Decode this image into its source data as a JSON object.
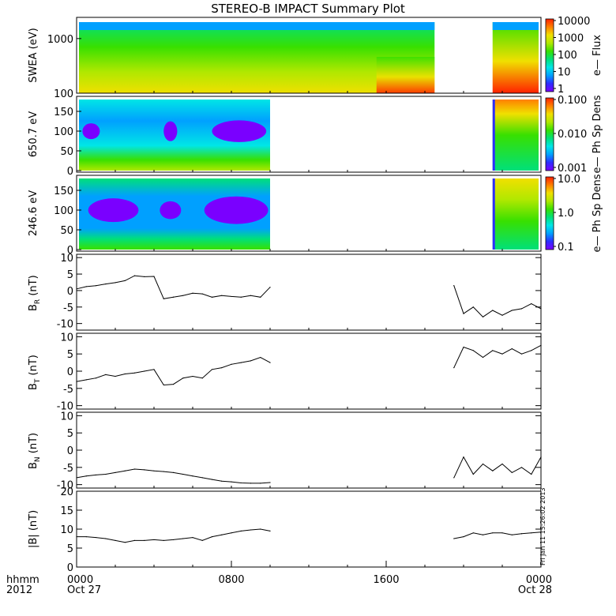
{
  "title": "STEREO-B IMPACT Summary Plot",
  "stamp": "Fri Jan 11 15:26:02 2013",
  "x_axis": {
    "ticks": [
      "0000",
      "0800",
      "1600",
      "0000"
    ],
    "dates": [
      "Oct 27",
      "",
      "",
      "Oct 28"
    ],
    "corner_label_1": "hhmm",
    "corner_label_2": "2012"
  },
  "colors": {
    "line": "#000000",
    "spectrum": [
      "#7a00ff",
      "#2d2dff",
      "#00a0ff",
      "#00e6e6",
      "#00e07a",
      "#38e000",
      "#b0e800",
      "#f0e000",
      "#ff8000",
      "#ff2000"
    ]
  },
  "chart_data": [
    {
      "type": "heatmap",
      "ylabel": "SWEA (eV)",
      "yscale": "log",
      "ylim": [
        100,
        2000
      ],
      "yticks": [
        "1000",
        "100"
      ],
      "colorbar": {
        "label": "e— Flux",
        "scale": "log",
        "range": [
          1,
          20000
        ],
        "ticks": [
          "10000",
          "1000",
          "100",
          "10",
          "1"
        ]
      },
      "data_gaps_hours": [
        [
          18.5,
          21.5
        ]
      ]
    },
    {
      "type": "heatmap",
      "ylabel": "650.7 eV",
      "ylim": [
        0,
        180
      ],
      "yticks": [
        "150",
        "100",
        "50",
        "0"
      ],
      "colorbar": {
        "label": "e— Ph Sp Dens",
        "scale": "log",
        "range": [
          0.001,
          0.1
        ],
        "ticks": [
          "0.100",
          "0.010",
          "0.001"
        ]
      },
      "data_gaps_hours": [
        [
          10,
          21.5
        ]
      ]
    },
    {
      "type": "heatmap",
      "ylabel": "246.6 eV",
      "ylim": [
        0,
        180
      ],
      "yticks": [
        "150",
        "100",
        "50",
        "0"
      ],
      "colorbar": {
        "label": "e— Ph Sp Dens",
        "scale": "log",
        "range": [
          0.1,
          10
        ],
        "ticks": [
          "10.0",
          "1.0",
          "0.1"
        ]
      },
      "data_gaps_hours": [
        [
          10,
          21.5
        ]
      ]
    },
    {
      "type": "line",
      "ylabel": "B",
      "ysub": "R",
      "yunit": " (nT)",
      "ylim": [
        -12,
        11
      ],
      "yticks": [
        10,
        5,
        0,
        -5,
        -10
      ],
      "x": [
        0,
        0.5,
        1,
        1.5,
        2,
        2.5,
        3,
        3.5,
        4,
        4.5,
        5,
        5.5,
        6,
        6.5,
        7,
        7.5,
        8,
        8.5,
        9,
        9.5,
        10,
        19.5,
        20,
        20.5,
        21,
        21.5,
        22,
        22.5,
        23,
        23.5,
        24
      ],
      "y": [
        0.5,
        1.2,
        1.5,
        2,
        2.4,
        3,
        4.5,
        4.2,
        4.3,
        -2.5,
        -2,
        -1.5,
        -0.8,
        -1,
        -2,
        -1.5,
        -1.8,
        -2,
        -1.5,
        -2,
        1,
        1.5,
        -7,
        -5,
        -8,
        -6,
        -7.5,
        -6,
        -5.5,
        -4,
        -5.5
      ]
    },
    {
      "type": "line",
      "ylabel": "B",
      "ysub": "T",
      "yunit": " (nT)",
      "ylim": [
        -11,
        11
      ],
      "yticks": [
        10,
        5,
        0,
        -5,
        -10
      ],
      "x": [
        0,
        0.5,
        1,
        1.5,
        2,
        2.5,
        3,
        3.5,
        4,
        4.5,
        5,
        5.5,
        6,
        6.5,
        7,
        7.5,
        8,
        8.5,
        9,
        9.5,
        10,
        19.5,
        20,
        20.5,
        21,
        21.5,
        22,
        22.5,
        23,
        23.5,
        24
      ],
      "y": [
        -3,
        -2.5,
        -2,
        -1,
        -1.5,
        -0.8,
        -0.5,
        0,
        0.5,
        -4,
        -3.8,
        -2,
        -1.5,
        -2,
        0.5,
        1,
        2,
        2.5,
        3,
        4,
        2.5,
        1,
        7,
        6,
        4,
        6,
        5,
        6.5,
        5,
        6,
        7.5
      ]
    },
    {
      "type": "line",
      "ylabel": "B",
      "ysub": "N",
      "yunit": " (nT)",
      "ylim": [
        -11,
        11
      ],
      "yticks": [
        10,
        5,
        0,
        -5,
        -10
      ],
      "x": [
        0,
        0.5,
        1,
        1.5,
        2,
        2.5,
        3,
        3.5,
        4,
        4.5,
        5,
        5.5,
        6,
        6.5,
        7,
        7.5,
        8,
        8.5,
        9,
        9.5,
        10,
        19.5,
        20,
        20.5,
        21,
        21.5,
        22,
        22.5,
        23,
        23.5,
        24
      ],
      "y": [
        -8,
        -7.5,
        -7.2,
        -7,
        -6.5,
        -6,
        -5.5,
        -5.7,
        -6,
        -6.2,
        -6.5,
        -7,
        -7.5,
        -8,
        -8.5,
        -9,
        -9.2,
        -9.5,
        -9.6,
        -9.6,
        -9.4,
        -8,
        -2,
        -7,
        -4,
        -6,
        -4,
        -6.5,
        -5,
        -7,
        -2
      ]
    },
    {
      "type": "line",
      "ylabel": "|B|",
      "ysub": "",
      "yunit": " (nT)",
      "ylim": [
        0,
        20
      ],
      "yticks": [
        20,
        15,
        10,
        5,
        0
      ],
      "x": [
        0,
        0.5,
        1,
        1.5,
        2,
        2.5,
        3,
        3.5,
        4,
        4.5,
        5,
        5.5,
        6,
        6.5,
        7,
        7.5,
        8,
        8.5,
        9,
        9.5,
        10,
        19.5,
        20,
        20.5,
        21,
        21.5,
        22,
        22.5,
        23,
        23.5,
        24
      ],
      "y": [
        8,
        8,
        7.8,
        7.5,
        7,
        6.5,
        7,
        7,
        7.2,
        7,
        7.2,
        7.5,
        7.8,
        7,
        8,
        8.5,
        9,
        9.5,
        9.8,
        10,
        9.5,
        7.5,
        8,
        9,
        8.5,
        9,
        9,
        8.5,
        8.8,
        9,
        9.2
      ]
    }
  ]
}
